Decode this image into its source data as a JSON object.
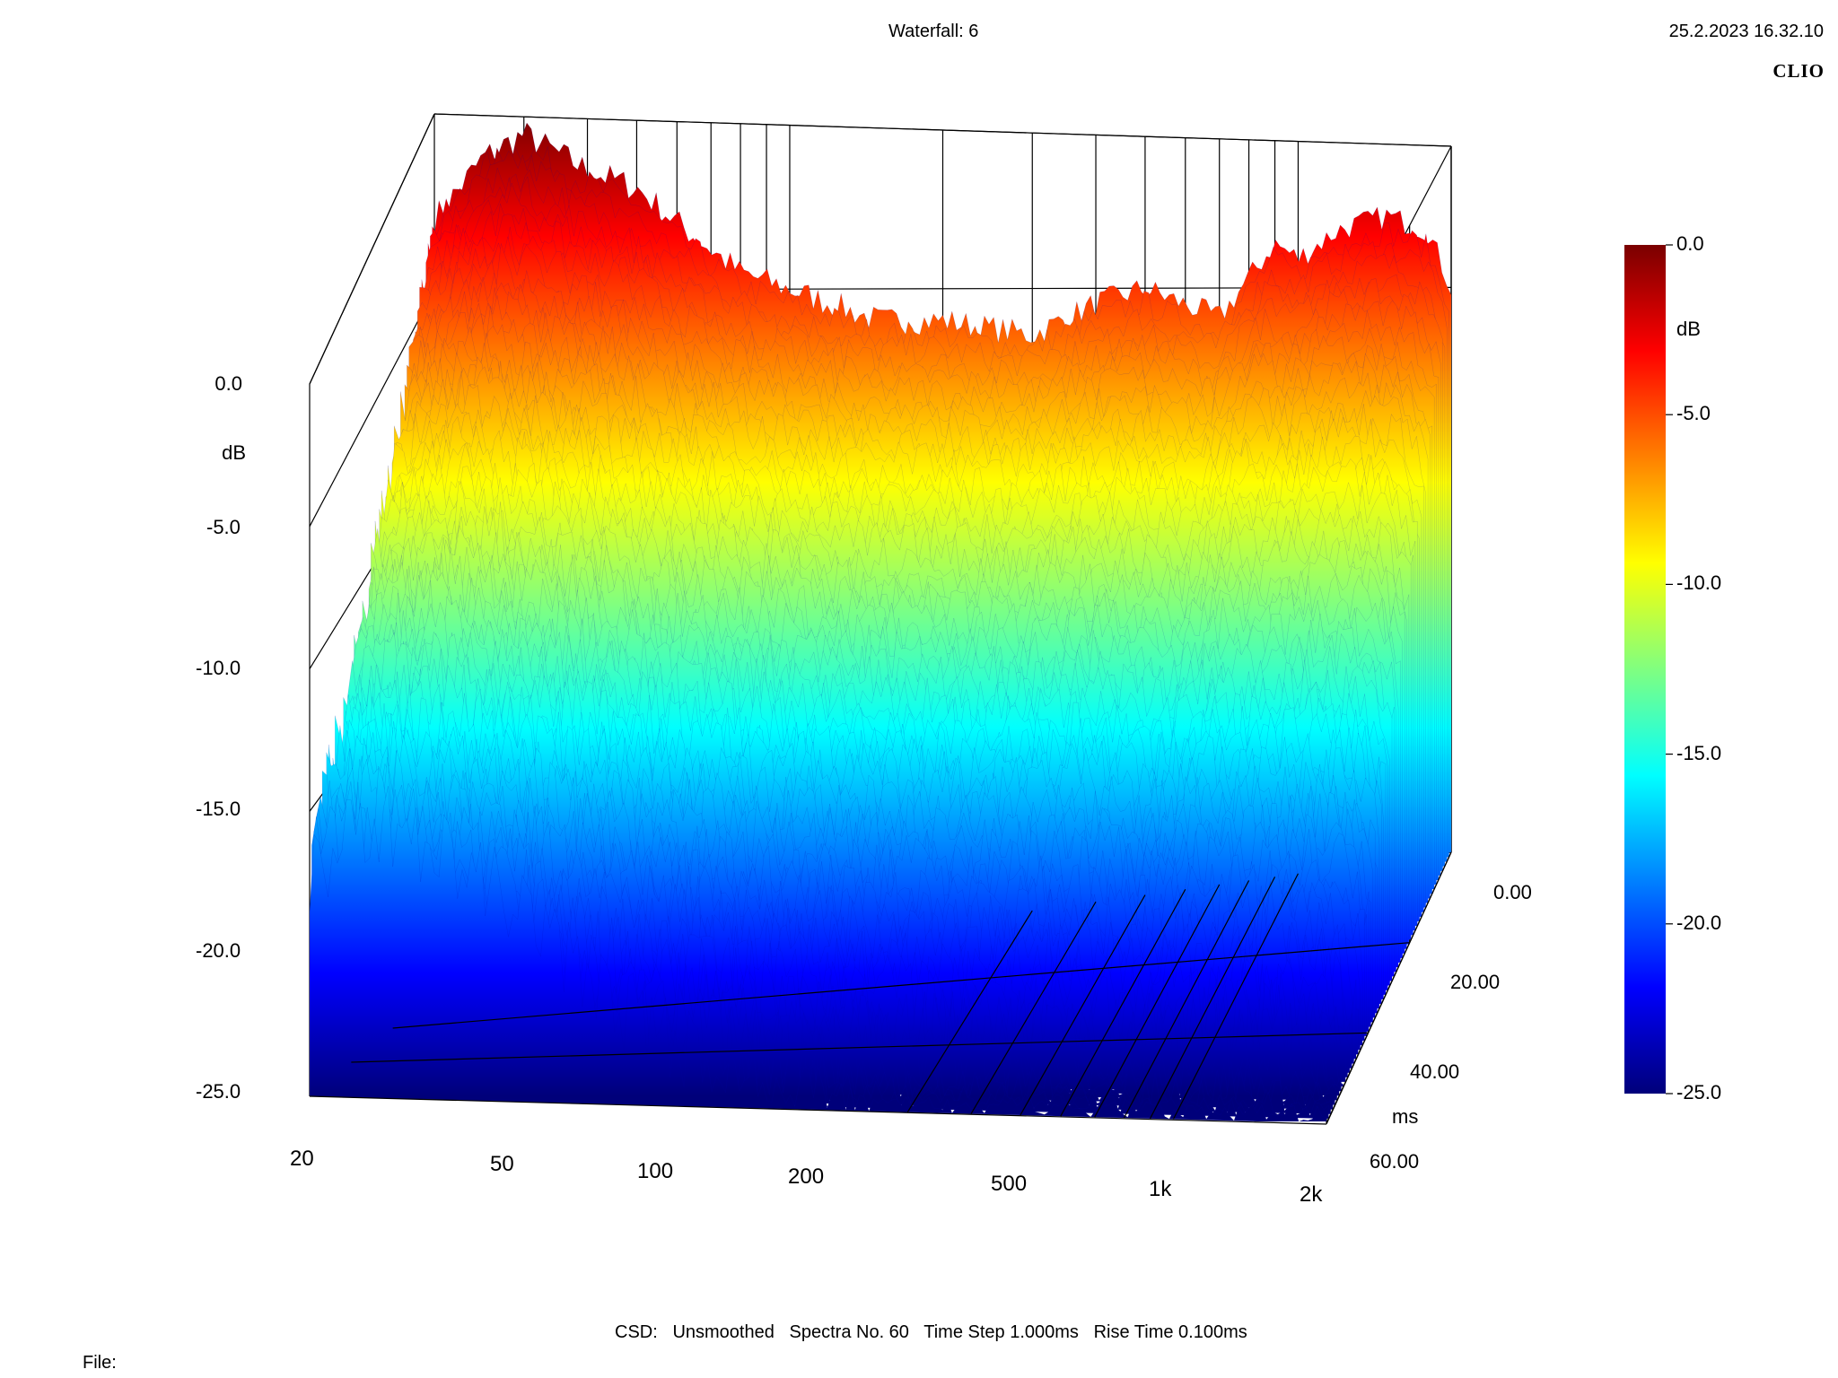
{
  "header": {
    "title": "Waterfall: 6",
    "timestamp": "25.2.2023 16.32.10",
    "brand": "CLIO"
  },
  "footer": {
    "settings": "CSD:   Unsmoothed   Spectra No. 60   Time Step 1.000ms   Rise Time 0.100ms",
    "file_label": "File:"
  },
  "colorbar": {
    "unit": "dB",
    "ticks": [
      "0.0",
      "-5.0",
      "-10.0",
      "-15.0",
      "-20.0",
      "-25.0"
    ],
    "stops": [
      "#7a0000",
      "#ff0000",
      "#ff8000",
      "#ffff00",
      "#80ff80",
      "#00ffff",
      "#0080ff",
      "#0000ff",
      "#00007a"
    ]
  },
  "chart_data": {
    "type": "waterfall",
    "title": "Waterfall: 6",
    "xlabel": "",
    "ylabel": "dB",
    "zlabel": "ms",
    "x_scale": "log",
    "x_range": [
      20,
      2000
    ],
    "x_tick_labels": [
      "20",
      "50",
      "100",
      "200",
      "500",
      "1k",
      "2k"
    ],
    "x_tick_values": [
      20,
      50,
      100,
      200,
      500,
      1000,
      2000
    ],
    "y_range": [
      -25,
      0
    ],
    "y_tick_labels": [
      "0.0",
      "dB",
      "-5.0",
      "-10.0",
      "-15.0",
      "-20.0",
      "-25.0"
    ],
    "z_range": [
      0,
      60
    ],
    "z_tick_labels": [
      "0.00",
      "20.00",
      "40.00",
      "ms",
      "60.00"
    ],
    "grid": true,
    "colormap": "jet",
    "spectra_count": 60,
    "time_step_ms": 1.0,
    "rise_time_ms": 0.1,
    "smoothing": "Unsmoothed",
    "front_slice_approx_db": {
      "freq_hz": [
        20,
        25,
        30,
        40,
        50,
        60,
        80,
        100,
        150,
        200,
        300,
        400,
        500,
        700,
        900,
        1000,
        1200,
        1500,
        1800,
        2000
      ],
      "level_db": [
        -3.0,
        -1.2,
        -0.5,
        -1.5,
        -2.0,
        -3.0,
        -4.5,
        -5.0,
        -6.0,
        -6.0,
        -6.5,
        -5.5,
        -5.0,
        -6.0,
        -3.5,
        -4.0,
        -3.0,
        -2.5,
        -3.0,
        -5.0
      ]
    }
  }
}
